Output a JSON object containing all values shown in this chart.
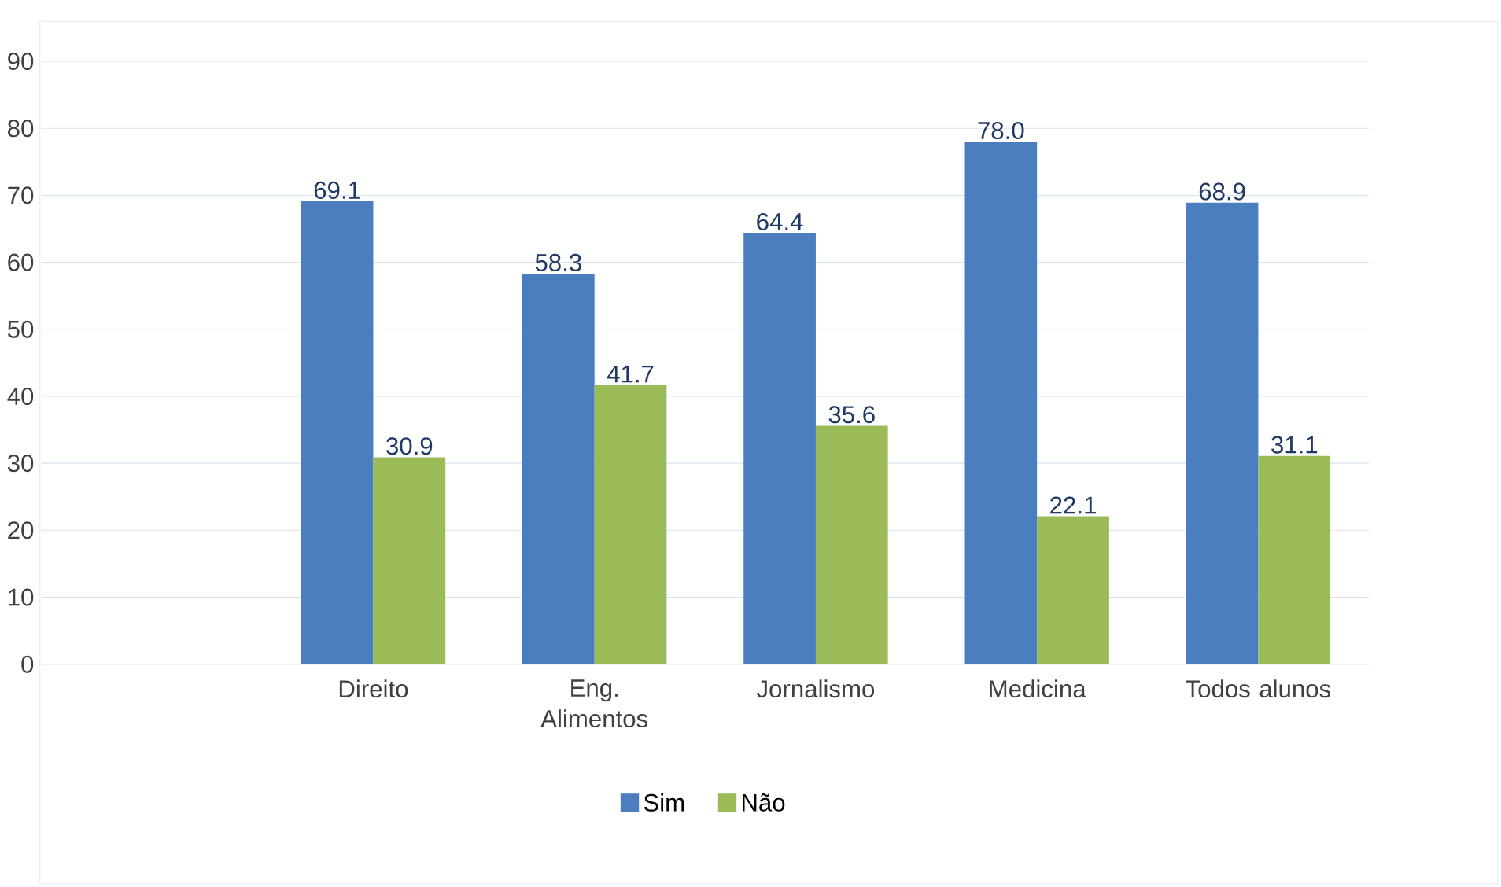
{
  "chart_data": {
    "type": "bar",
    "categories": [
      null,
      "Direito",
      "Eng. Alimentos",
      "Jornalismo",
      "Medicina",
      "Todos alunos"
    ],
    "series": [
      {
        "name": "Sim",
        "color": "#4a7ebf",
        "values": [
          null,
          69.1,
          58.3,
          64.4,
          78.0,
          68.9
        ],
        "value_labels": [
          null,
          "69.1",
          "58.3",
          "64.4",
          "78.0",
          "68.9"
        ]
      },
      {
        "name": "Não",
        "color": "#9bbb59",
        "values": [
          null,
          30.9,
          41.7,
          35.6,
          22.1,
          31.1
        ],
        "value_labels": [
          null,
          "30.9",
          "41.7",
          "35.6",
          "22.1",
          "31.1"
        ]
      }
    ],
    "ylim": [
      0,
      90
    ],
    "yticks": [
      0,
      10,
      20,
      30,
      40,
      50,
      60,
      70,
      80,
      90
    ],
    "grid": "y",
    "legend": "bottom"
  }
}
